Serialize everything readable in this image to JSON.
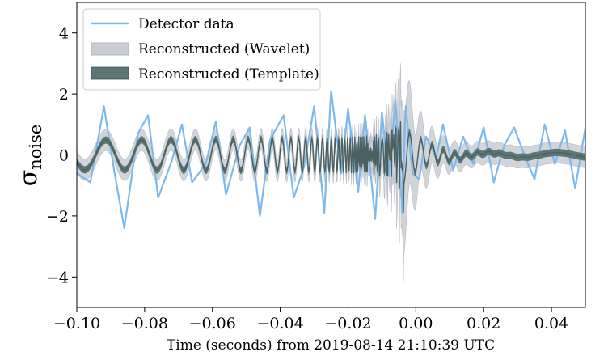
{
  "chart_data": {
    "type": "line",
    "xlabel": "Time (seconds) from 2019-08-14 21:10:39 UTC",
    "ylabel": "σ",
    "ylabel_sub": "noise",
    "xlim": [
      -0.1,
      0.05
    ],
    "ylim": [
      -5,
      5
    ],
    "x_ticks": [
      -0.1,
      -0.08,
      -0.06,
      -0.04,
      -0.02,
      0.0,
      0.02,
      0.04
    ],
    "x_tick_labels": [
      "−0.10",
      "−0.08",
      "−0.06",
      "−0.04",
      "−0.02",
      "0.00",
      "0.02",
      "0.04"
    ],
    "y_ticks": [
      -4,
      -2,
      0,
      2,
      4
    ],
    "y_tick_labels": [
      "−4",
      "−2",
      "0",
      "2",
      "4"
    ],
    "grid": false,
    "legend_position": "top-left",
    "series": [
      {
        "name": "Detector data",
        "kind": "line",
        "color": "#7db9ec",
        "x": [
          -0.1,
          -0.096,
          -0.092,
          -0.089,
          -0.086,
          -0.082,
          -0.079,
          -0.076,
          -0.072,
          -0.069,
          -0.066,
          -0.062,
          -0.059,
          -0.056,
          -0.052,
          -0.049,
          -0.046,
          -0.043,
          -0.039,
          -0.036,
          -0.033,
          -0.03,
          -0.027,
          -0.025,
          -0.022,
          -0.02,
          -0.017,
          -0.015,
          -0.012,
          -0.01,
          -0.008,
          -0.006,
          -0.004,
          -0.003,
          -0.001,
          0.001,
          0.003,
          0.006,
          0.008,
          0.011,
          0.014,
          0.017,
          0.02,
          0.023,
          0.026,
          0.029,
          0.032,
          0.035,
          0.038,
          0.041,
          0.044,
          0.047,
          0.05
        ],
        "y": [
          -0.6,
          -0.9,
          1.6,
          -0.5,
          -2.4,
          0.7,
          1.3,
          -1.4,
          -0.2,
          1.0,
          -0.9,
          -0.3,
          1.1,
          -1.3,
          0.3,
          0.9,
          -2.0,
          0.5,
          1.3,
          -1.4,
          -0.4,
          1.6,
          -1.9,
          2.1,
          -0.6,
          1.5,
          -1.2,
          1.3,
          -2.1,
          1.4,
          -0.7,
          1.8,
          -1.9,
          1.6,
          -0.6,
          -0.8,
          0.6,
          -0.1,
          1.0,
          -0.5,
          0.6,
          -0.3,
          0.9,
          -0.9,
          0.3,
          0.9,
          0.0,
          -0.8,
          1.0,
          -0.3,
          0.8,
          -1.1,
          0.9
        ]
      },
      {
        "name": "Reconstructed (Wavelet)",
        "kind": "band",
        "color": "#c9ccd2"
      },
      {
        "name": "Reconstructed (Template)",
        "kind": "band+line",
        "color": "#5c7676"
      }
    ],
    "template_model": {
      "t_merger": -0.0035,
      "phase_coeff": 16.5,
      "phase_exp": 0.625,
      "amp_base": 0.42,
      "amp_coeff": 0.018,
      "amp_exp": 0.55,
      "amp_max": 1.95,
      "ringdown_amp": 0.9,
      "ringdown_tau": 0.008,
      "ringdown_freq": 300,
      "tail_amp": 0.08,
      "tail_freq": 50,
      "template_band": 0.12,
      "wavelet_band": 0.35,
      "wavelet_band_peak": 2.0
    }
  }
}
